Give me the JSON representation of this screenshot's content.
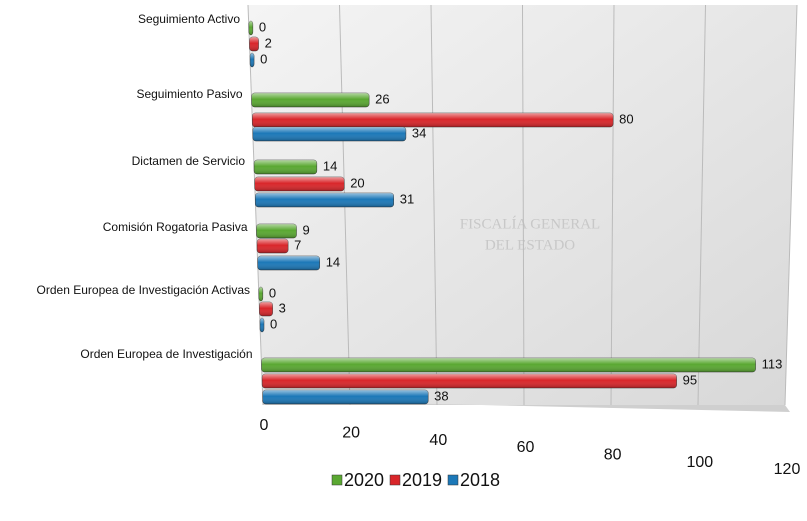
{
  "chart_data": {
    "type": "bar",
    "orientation": "horizontal",
    "categories": [
      "Seguimiento Activo",
      "Seguimiento Pasivo",
      "Dictamen de Servicio",
      "Comisión Rogatoria Pasiva",
      "Orden Europea de Investigación Activas",
      "Orden Europea de Investigación"
    ],
    "series": [
      {
        "name": "2020",
        "color": "#5aa832",
        "values": [
          0,
          26,
          14,
          9,
          0,
          113
        ]
      },
      {
        "name": "2019",
        "color": "#d9262a",
        "values": [
          2,
          80,
          20,
          7,
          3,
          95
        ]
      },
      {
        "name": "2018",
        "color": "#1c78b8",
        "values": [
          0,
          34,
          31,
          14,
          0,
          38
        ]
      }
    ],
    "xlim": [
      0,
      120
    ],
    "xticks": [
      0,
      20,
      40,
      60,
      80,
      100,
      120
    ],
    "grid": true,
    "legend": "bottom"
  }
}
